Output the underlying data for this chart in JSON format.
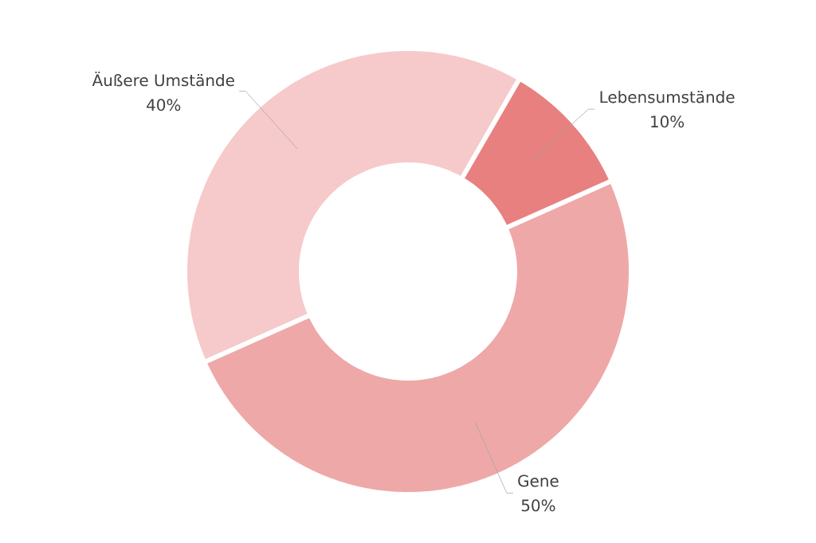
{
  "chart_data": {
    "type": "donut",
    "categories": [
      "Lebensumstände",
      "Gene",
      "Äußere Umstände"
    ],
    "values": [
      10,
      50,
      40
    ],
    "colors": [
      "#e88080",
      "#eea8a8",
      "#f6caca"
    ],
    "value_labels": [
      "10%",
      "50%",
      "40%"
    ]
  }
}
